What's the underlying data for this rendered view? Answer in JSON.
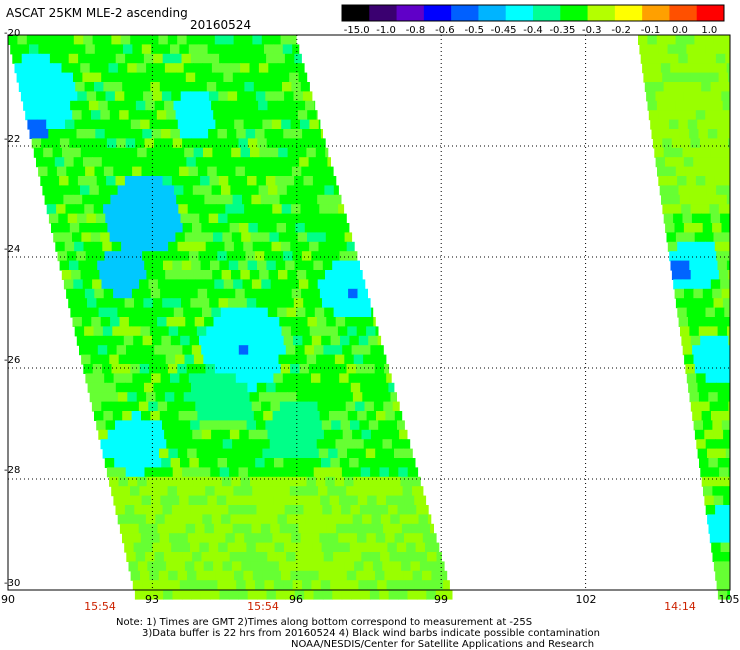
{
  "header": {
    "title": "ASCAT 25KM MLE-2 ascending",
    "date": "20160524"
  },
  "colorbar": {
    "labels": [
      "-15.0",
      "-1.0",
      "-0.8",
      "-0.6",
      "-0.5",
      "-0.45",
      "-0.4",
      "-0.35",
      "-0.3",
      "-0.2",
      "-0.1",
      "0.0",
      "1.0"
    ],
    "colors": [
      "#000000",
      "#3a0070",
      "#6000c8",
      "#0000ff",
      "#0060ff",
      "#00b4ff",
      "#00ffff",
      "#00ff96",
      "#00ff00",
      "#b4ff00",
      "#ffff00",
      "#ffa000",
      "#ff5000",
      "#ff0000"
    ]
  },
  "map": {
    "x_ticks": [
      "90",
      "93",
      "96",
      "99",
      "102",
      "105"
    ],
    "y_ticks": [
      "-20",
      "-22",
      "-24",
      "-26",
      "-28",
      "-30"
    ],
    "time_labels": [
      "15:54",
      "15:54",
      "14:14"
    ],
    "palette": {
      "green": "#00ff00",
      "light_green": "#66ff33",
      "yellow_green": "#99ff00",
      "aqua_green": "#00ff88",
      "cyan": "#00ffff",
      "light_blue": "#00c8ff",
      "blue": "#0064ff",
      "dark_blue": "#1e00c8",
      "violet": "#3a0070"
    }
  },
  "notes": {
    "line1": "Note: 1) Times are GMT 2)Times along bottom correspond to measurement at -25S",
    "line2": "3)Data buffer is 22 hrs from 20160524 4) Black wind barbs indicate possible contamination",
    "line3": "NOAA/NESDIS/Center for Satellite Applications and Research"
  }
}
